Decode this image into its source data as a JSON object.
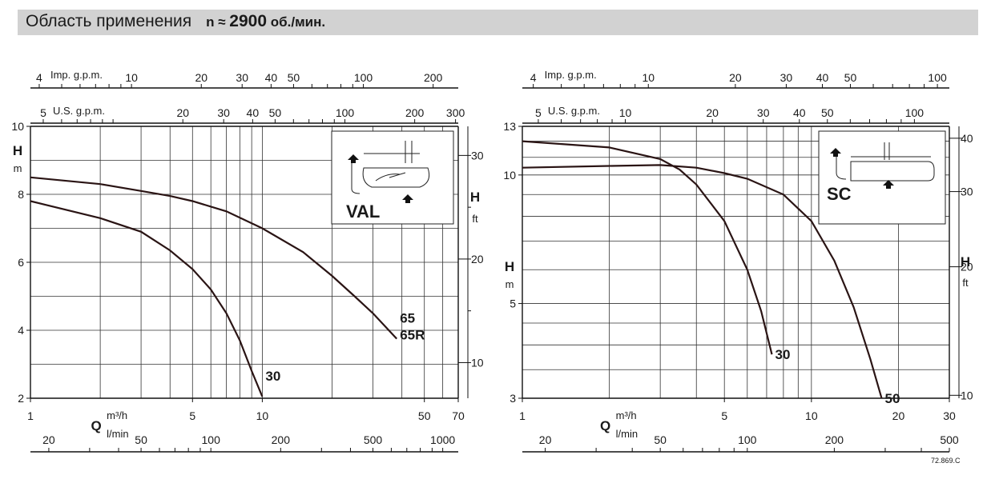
{
  "header": {
    "title": "Область применения",
    "speed_prefix": "n ≈",
    "speed_value": "2900",
    "speed_unit": "об./мин."
  },
  "doc_code": "72.869.C",
  "chart_data": [
    {
      "type": "line",
      "pump_label": "VAL",
      "xscale": "log",
      "yscale": "linear",
      "x_unit_label": "m³/h",
      "x_unit_secondary": "l/min",
      "x_letter": "Q",
      "y_letter": "H",
      "y_unit": "m",
      "y_right_letter": "H",
      "y_right_unit": "ft",
      "xlim": [
        1,
        70
      ],
      "ylim": [
        2,
        10
      ],
      "x_ticks": [
        {
          "v": 1,
          "t": "1"
        },
        {
          "v": 5,
          "t": "5"
        },
        {
          "v": 10,
          "t": "10"
        },
        {
          "v": 50,
          "t": "50"
        },
        {
          "v": 70,
          "t": "70"
        }
      ],
      "y_ticks": [
        {
          "v": 2,
          "t": "2"
        },
        {
          "v": 4,
          "t": "4"
        },
        {
          "v": 6,
          "t": "6"
        },
        {
          "v": 8,
          "t": "8"
        },
        {
          "v": 10,
          "t": "10"
        }
      ],
      "lmin_ticks": [
        {
          "v": 20,
          "t": "20"
        },
        {
          "v": 50,
          "t": "50"
        },
        {
          "v": 100,
          "t": "100"
        },
        {
          "v": 200,
          "t": "200"
        },
        {
          "v": 500,
          "t": "500"
        },
        {
          "v": 1000,
          "t": "1000"
        }
      ],
      "ft_ticks": [
        {
          "v": 10,
          "t": "10"
        },
        {
          "v": 20,
          "t": "20"
        },
        {
          "v": 30,
          "t": "30"
        }
      ],
      "ft_minor": [
        15,
        25
      ],
      "imp_label": "Imp. g.p.m.",
      "imp_ticks": [
        {
          "v": 4,
          "t": "4"
        },
        {
          "v": 10,
          "t": "10"
        },
        {
          "v": 20,
          "t": "20"
        },
        {
          "v": 30,
          "t": "30"
        },
        {
          "v": 40,
          "t": "40"
        },
        {
          "v": 50,
          "t": "50"
        },
        {
          "v": 100,
          "t": "100"
        },
        {
          "v": 200,
          "t": "200"
        }
      ],
      "us_label": "U.S. g.p.m.",
      "us_ticks": [
        {
          "v": 5,
          "t": "5"
        },
        {
          "v": 20,
          "t": "20"
        },
        {
          "v": 30,
          "t": "30"
        },
        {
          "v": 40,
          "t": "40"
        },
        {
          "v": 50,
          "t": "50"
        },
        {
          "v": 100,
          "t": "100"
        },
        {
          "v": 200,
          "t": "200"
        },
        {
          "v": 300,
          "t": "300"
        }
      ],
      "series": [
        {
          "name": "30",
          "label_lines": [
            "30"
          ],
          "points": [
            [
              1,
              7.8
            ],
            [
              2,
              7.3
            ],
            [
              3,
              6.9
            ],
            [
              4,
              6.35
            ],
            [
              5,
              5.8
            ],
            [
              6,
              5.2
            ],
            [
              7,
              4.5
            ],
            [
              8,
              3.7
            ],
            [
              9,
              2.8
            ],
            [
              10,
              2.05
            ]
          ]
        },
        {
          "name": "65 65R",
          "label_lines": [
            "65",
            "65R"
          ],
          "points": [
            [
              1,
              8.5
            ],
            [
              2,
              8.3
            ],
            [
              3,
              8.1
            ],
            [
              4,
              7.95
            ],
            [
              5,
              7.8
            ],
            [
              7,
              7.5
            ],
            [
              10,
              7.0
            ],
            [
              15,
              6.3
            ],
            [
              20,
              5.6
            ],
            [
              25,
              5.0
            ],
            [
              30,
              4.5
            ],
            [
              38,
              3.75
            ]
          ]
        }
      ]
    },
    {
      "type": "line",
      "pump_label": "SC",
      "xscale": "log",
      "yscale": "log",
      "x_unit_label": "m³/h",
      "x_unit_secondary": "l/min",
      "x_letter": "Q",
      "y_letter": "H",
      "y_unit": "m",
      "y_right_letter": "H",
      "y_right_unit": "ft",
      "xlim": [
        1,
        30
      ],
      "ylim": [
        3,
        13
      ],
      "x_ticks": [
        {
          "v": 1,
          "t": "1"
        },
        {
          "v": 5,
          "t": "5"
        },
        {
          "v": 10,
          "t": "10"
        },
        {
          "v": 20,
          "t": "20"
        },
        {
          "v": 30,
          "t": "30"
        }
      ],
      "y_ticks": [
        {
          "v": 3,
          "t": "3"
        },
        {
          "v": 5,
          "t": "5"
        },
        {
          "v": 10,
          "t": "10"
        },
        {
          "v": 13,
          "t": "13"
        }
      ],
      "lmin_ticks": [
        {
          "v": 20,
          "t": "20"
        },
        {
          "v": 50,
          "t": "50"
        },
        {
          "v": 100,
          "t": "100"
        },
        {
          "v": 200,
          "t": "200"
        },
        {
          "v": 500,
          "t": "500"
        }
      ],
      "ft_ticks": [
        {
          "v": 10,
          "t": "10"
        },
        {
          "v": 20,
          "t": "20"
        },
        {
          "v": 30,
          "t": "30"
        },
        {
          "v": 40,
          "t": "40"
        }
      ],
      "ft_minor": [],
      "imp_label": "Imp. g.p.m.",
      "imp_ticks": [
        {
          "v": 4,
          "t": "4"
        },
        {
          "v": 10,
          "t": "10"
        },
        {
          "v": 20,
          "t": "20"
        },
        {
          "v": 30,
          "t": "30"
        },
        {
          "v": 40,
          "t": "40"
        },
        {
          "v": 50,
          "t": "50"
        },
        {
          "v": 100,
          "t": "100"
        }
      ],
      "us_label": "U.S. g.p.m.",
      "us_ticks": [
        {
          "v": 5,
          "t": "5"
        },
        {
          "v": 10,
          "t": "10"
        },
        {
          "v": 20,
          "t": "20"
        },
        {
          "v": 30,
          "t": "30"
        },
        {
          "v": 40,
          "t": "40"
        },
        {
          "v": 50,
          "t": "50"
        },
        {
          "v": 100,
          "t": "100"
        }
      ],
      "series": [
        {
          "name": "30",
          "label_lines": [
            "30"
          ],
          "points": [
            [
              1,
              12.0
            ],
            [
              2,
              11.6
            ],
            [
              3,
              10.9
            ],
            [
              3.5,
              10.3
            ],
            [
              4,
              9.5
            ],
            [
              5,
              7.8
            ],
            [
              6,
              6.0
            ],
            [
              6.7,
              4.8
            ],
            [
              7.3,
              3.8
            ]
          ]
        },
        {
          "name": "50",
          "label_lines": [
            "50"
          ],
          "points": [
            [
              1,
              10.4
            ],
            [
              2,
              10.5
            ],
            [
              3,
              10.55
            ],
            [
              4,
              10.4
            ],
            [
              5,
              10.1
            ],
            [
              6,
              9.8
            ],
            [
              8,
              9.0
            ],
            [
              10,
              7.8
            ],
            [
              12,
              6.3
            ],
            [
              14,
              4.9
            ],
            [
              16,
              3.7
            ],
            [
              17.5,
              3.0
            ]
          ]
        }
      ]
    }
  ]
}
